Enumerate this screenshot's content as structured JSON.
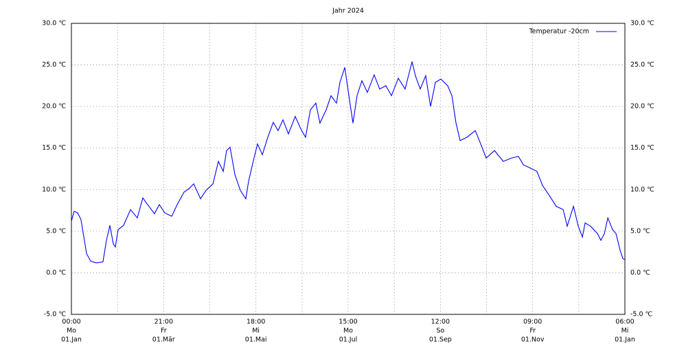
{
  "chart_data": {
    "type": "line",
    "title": "Jahr 2024",
    "grid": true,
    "legend": "top-right",
    "xlim": [
      0,
      365.25
    ],
    "ylim": [
      -5,
      30
    ],
    "yticks": [
      {
        "value": -5,
        "label": "-5.0 ℃"
      },
      {
        "value": 0,
        "label": "0.0 ℃"
      },
      {
        "value": 5,
        "label": "5.0 ℃"
      },
      {
        "value": 10,
        "label": "10.0 ℃"
      },
      {
        "value": 15,
        "label": "15.0 ℃"
      },
      {
        "value": 20,
        "label": "20.0 ℃"
      },
      {
        "value": 25,
        "label": "25.0 ℃"
      },
      {
        "value": 30,
        "label": "30.0 ℃"
      }
    ],
    "xticks": [
      {
        "value": 0,
        "label": [
          "00:00",
          "Mo",
          "01.Jan"
        ]
      },
      {
        "value": 30.4375,
        "label": null
      },
      {
        "value": 60.875,
        "label": [
          "21:00",
          "Fr",
          "01.Mär"
        ]
      },
      {
        "value": 91.3125,
        "label": null
      },
      {
        "value": 121.75,
        "label": [
          "18:00",
          "Mi",
          "01.Mai"
        ]
      },
      {
        "value": 152.1875,
        "label": null
      },
      {
        "value": 182.625,
        "label": [
          "15:00",
          "Mo",
          "01.Jul"
        ]
      },
      {
        "value": 213.0625,
        "label": null
      },
      {
        "value": 243.5,
        "label": [
          "12:00",
          "So",
          "01.Sep"
        ]
      },
      {
        "value": 273.9375,
        "label": null
      },
      {
        "value": 304.375,
        "label": [
          "09:00",
          "Fr",
          "01.Nov"
        ]
      },
      {
        "value": 334.8125,
        "label": null
      },
      {
        "value": 365.25,
        "label": [
          "06:00",
          "Mi",
          "01.Jan"
        ]
      }
    ],
    "x": [
      0,
      1.8,
      4.1,
      6.3,
      8.2,
      10,
      12.7,
      16.3,
      20.8,
      23.1,
      25.4,
      27.6,
      29,
      30.8,
      34.4,
      39,
      43.5,
      47.1,
      50.3,
      54.8,
      58,
      61.6,
      66.2,
      69.8,
      74.3,
      77.5,
      80.7,
      85.2,
      88.8,
      93.4,
      97,
      100.2,
      102.4,
      104.7,
      107.9,
      111.5,
      115.1,
      116.9,
      120.5,
      122.8,
      126,
      129.6,
      133.2,
      136.4,
      139.6,
      143.2,
      147.7,
      151.4,
      154.5,
      157.7,
      161.3,
      164,
      168.1,
      171.3,
      174.9,
      177.2,
      180.4,
      183.1,
      185.8,
      188.5,
      191.7,
      195.3,
      199.8,
      203.4,
      207.5,
      211.2,
      215.7,
      220.2,
      224.8,
      227,
      230.2,
      233.8,
      237,
      240.2,
      243.8,
      248.3,
      251.1,
      253.8,
      256.5,
      261,
      266.5,
      270.1,
      273.7,
      279.2,
      285,
      290.5,
      295,
      298.2,
      302.7,
      307.2,
      310.9,
      315.4,
      319.9,
      324.5,
      327.2,
      331.3,
      334.5,
      337.2,
      339,
      342.6,
      347.2,
      349.4,
      351.7,
      354,
      357.1,
      359.4,
      362.1,
      363.9,
      365.2
    ],
    "series": [
      {
        "name": "Temperatur -20cm",
        "color": "#0000ff",
        "values": [
          6.2,
          7.4,
          7.2,
          6.4,
          4.3,
          2.3,
          1.4,
          1.2,
          1.3,
          3.9,
          5.7,
          3.5,
          3.1,
          5.2,
          5.7,
          7.6,
          6.6,
          9.0,
          8.2,
          7.1,
          8.2,
          7.2,
          6.8,
          8.2,
          9.7,
          10.1,
          10.7,
          8.9,
          9.9,
          10.7,
          13.4,
          12.2,
          14.7,
          15.1,
          11.8,
          9.9,
          8.9,
          11.0,
          13.8,
          15.5,
          14.2,
          16.3,
          18.1,
          17.1,
          18.4,
          16.7,
          18.8,
          17.3,
          16.3,
          19.6,
          20.4,
          18.0,
          19.6,
          21.3,
          20.4,
          22.9,
          24.7,
          21.3,
          18.0,
          21.3,
          23.1,
          21.7,
          23.8,
          22.1,
          22.5,
          21.3,
          23.4,
          22.1,
          25.4,
          23.7,
          22.1,
          23.7,
          20.0,
          22.9,
          23.3,
          22.5,
          21.3,
          18.0,
          15.9,
          16.3,
          17.1,
          15.5,
          13.8,
          14.7,
          13.4,
          13.8,
          14.0,
          13.0,
          12.6,
          12.2,
          10.5,
          9.3,
          8.0,
          7.6,
          5.6,
          8.0,
          5.6,
          4.3,
          6.0,
          5.6,
          4.7,
          3.9,
          4.7,
          6.6,
          5.2,
          4.7,
          2.7,
          1.7,
          1.6
        ]
      }
    ]
  }
}
